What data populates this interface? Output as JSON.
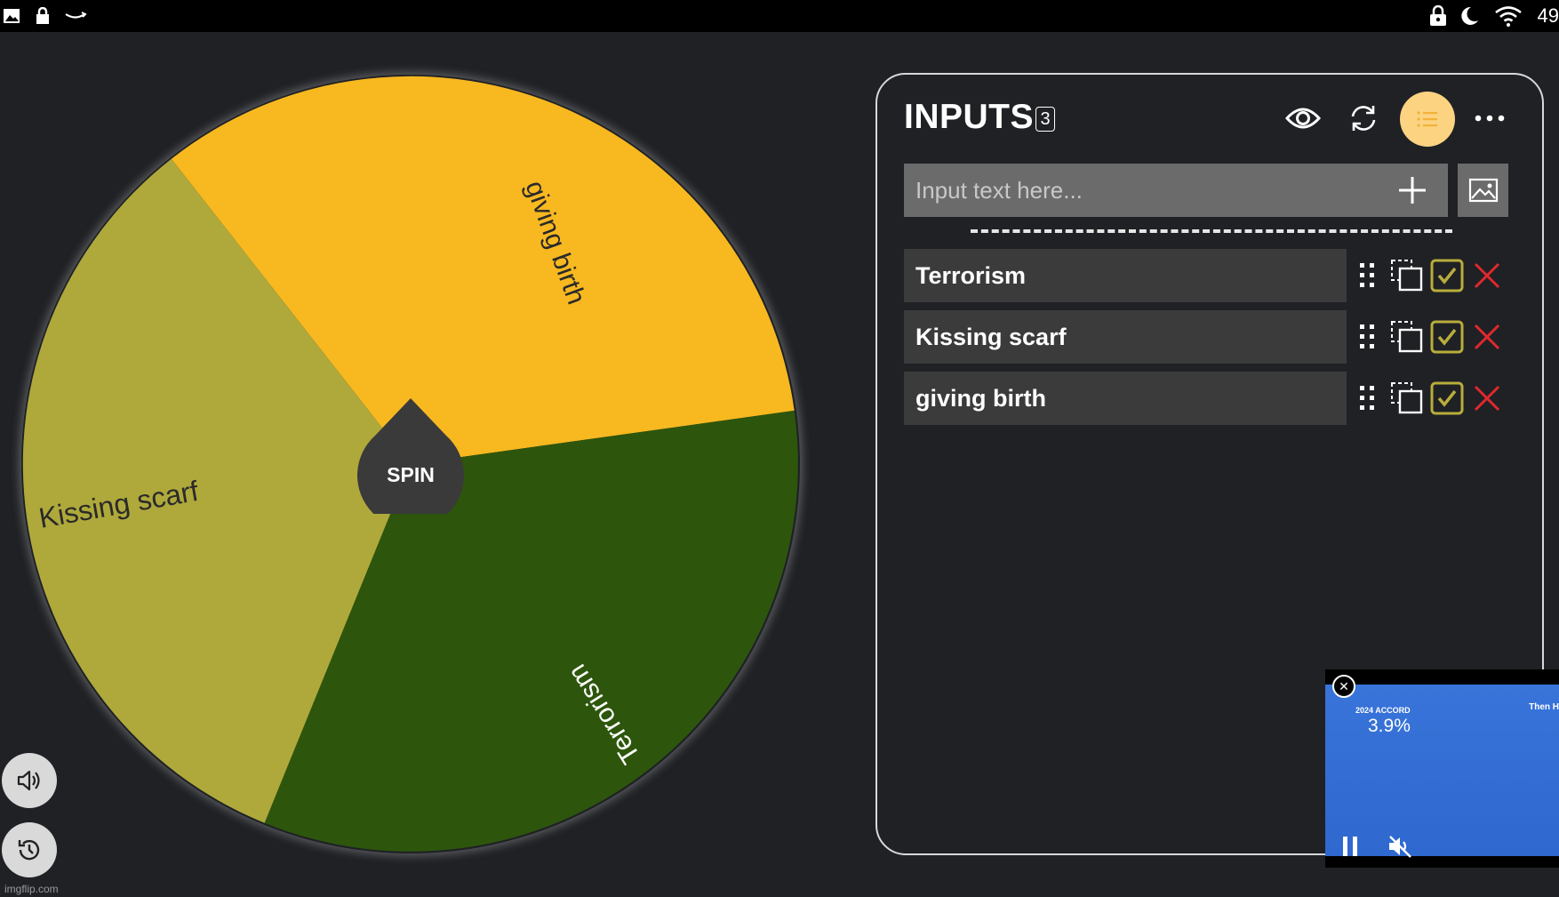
{
  "status_bar": {
    "left_icons": [
      "image-icon",
      "lock-icon",
      "amazon-icon"
    ],
    "right_icons": [
      "vpn-lock-icon",
      "moon-icon",
      "wifi-icon"
    ],
    "battery": "49"
  },
  "wheel": {
    "spin_label": "SPIN",
    "segments": [
      {
        "label": "giving birth",
        "color": "#f8b820",
        "text_color": "#2a2a2a"
      },
      {
        "label": "Terrorism",
        "color": "#2d560c",
        "text_color": "#ffffff"
      },
      {
        "label": "Kissing scarf",
        "color": "#afa93b",
        "text_color": "#2a2a2a"
      }
    ]
  },
  "panel": {
    "title": "INPUTS",
    "count": "3",
    "input_placeholder": "Input text here...",
    "input_value": "",
    "entries": [
      {
        "label": "Terrorism"
      },
      {
        "label": "Kissing scarf"
      },
      {
        "label": "giving birth"
      }
    ],
    "colors": {
      "accent": "#fbd381",
      "check": "#b9ad3c",
      "delete": "#e0282d"
    }
  },
  "video_ad": {
    "brand": "2024 ACCORD",
    "brand_right": "Then H",
    "rate": "3.9%"
  },
  "watermark": "imgflip.com"
}
